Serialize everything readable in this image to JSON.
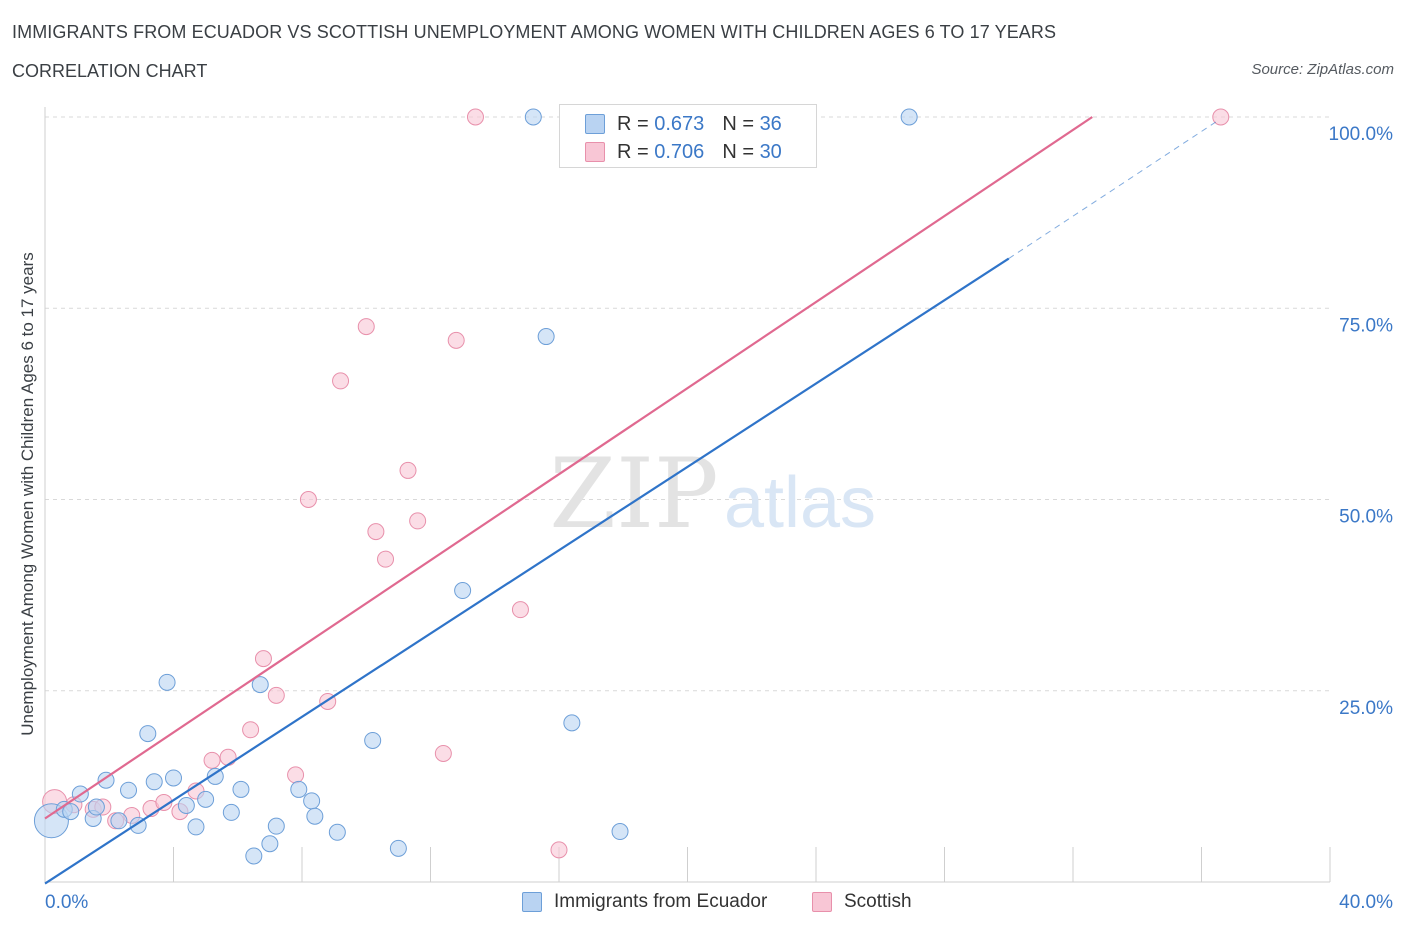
{
  "header": {
    "title": "IMMIGRANTS FROM ECUADOR VS SCOTTISH UNEMPLOYMENT AMONG WOMEN WITH CHILDREN AGES 6 TO 17 YEARS",
    "subtitle": "CORRELATION CHART",
    "source": "Source: ZipAtlas.com"
  },
  "legend": {
    "rows": [
      {
        "r_label": "R =",
        "r_value": "0.673",
        "n_label": "N =",
        "n_value": "36"
      },
      {
        "r_label": "R =",
        "r_value": "0.706",
        "n_label": "N =",
        "n_value": "30"
      }
    ]
  },
  "bottom_legend": [
    "Immigrants from Ecuador",
    "Scottish"
  ],
  "watermark": {
    "zip": "ZIP",
    "atlas": "atlas"
  },
  "colors": {
    "blue_fill": "#b9d3f2",
    "blue_stroke": "#6d9fd8",
    "blue_line": "#2f74c9",
    "pink_fill": "#f8c6d5",
    "pink_stroke": "#e890ab",
    "pink_line": "#e06990",
    "tick_label": "#3b78c7",
    "grid": "#d9d9d9"
  },
  "chart_data": {
    "type": "scatter",
    "title": "IMMIGRANTS FROM ECUADOR VS SCOTTISH UNEMPLOYMENT AMONG WOMEN WITH CHILDREN AGES 6 TO 17 YEARS",
    "xlabel": "",
    "ylabel": "Unemployment Among Women with Children Ages 6 to 17 years",
    "xlim": [
      0,
      40
    ],
    "ylim": [
      0,
      100
    ],
    "x_tick_labels": [
      "0.0%",
      "40.0%"
    ],
    "y_tick_labels": [
      "25.0%",
      "50.0%",
      "75.0%",
      "100.0%"
    ],
    "y_ticks": [
      25,
      50,
      75,
      100
    ],
    "grid": true,
    "legend_position": "top-center",
    "series": [
      {
        "name": "Immigrants from Ecuador",
        "r": 0.673,
        "n": 36,
        "trend": {
          "x": [
            0,
            30.0
          ],
          "y": [
            -0.2,
            81.5
          ],
          "extension": {
            "x": [
              30.0,
              36.5
            ],
            "y": [
              81.5,
              99.5
            ]
          }
        },
        "points": [
          {
            "x": 0.2,
            "y": 8.0,
            "big": true
          },
          {
            "x": 0.6,
            "y": 9.5
          },
          {
            "x": 0.8,
            "y": 9.2
          },
          {
            "x": 1.1,
            "y": 11.5
          },
          {
            "x": 1.5,
            "y": 8.3
          },
          {
            "x": 1.6,
            "y": 9.8
          },
          {
            "x": 1.9,
            "y": 13.3
          },
          {
            "x": 2.3,
            "y": 8.0
          },
          {
            "x": 2.6,
            "y": 12.0
          },
          {
            "x": 2.9,
            "y": 7.4
          },
          {
            "x": 3.2,
            "y": 19.4
          },
          {
            "x": 3.4,
            "y": 13.1
          },
          {
            "x": 3.8,
            "y": 26.1
          },
          {
            "x": 4.0,
            "y": 13.6
          },
          {
            "x": 4.4,
            "y": 10.0
          },
          {
            "x": 4.7,
            "y": 7.2
          },
          {
            "x": 5.0,
            "y": 10.8
          },
          {
            "x": 5.3,
            "y": 13.8
          },
          {
            "x": 5.8,
            "y": 9.1
          },
          {
            "x": 6.1,
            "y": 12.1
          },
          {
            "x": 6.5,
            "y": 3.4
          },
          {
            "x": 6.7,
            "y": 25.8
          },
          {
            "x": 7.0,
            "y": 5.0
          },
          {
            "x": 7.2,
            "y": 7.3
          },
          {
            "x": 7.9,
            "y": 12.1
          },
          {
            "x": 8.3,
            "y": 10.6
          },
          {
            "x": 8.4,
            "y": 8.6
          },
          {
            "x": 9.1,
            "y": 6.5
          },
          {
            "x": 10.2,
            "y": 18.5
          },
          {
            "x": 11.0,
            "y": 4.4
          },
          {
            "x": 13.0,
            "y": 38.1
          },
          {
            "x": 15.2,
            "y": 100.0
          },
          {
            "x": 15.6,
            "y": 71.3
          },
          {
            "x": 16.4,
            "y": 20.8
          },
          {
            "x": 17.9,
            "y": 6.6
          },
          {
            "x": 26.9,
            "y": 100.0
          }
        ]
      },
      {
        "name": "Scottish",
        "r": 0.706,
        "n": 30,
        "trend": {
          "x": [
            0,
            32.6
          ],
          "y": [
            8.3,
            100.0
          ]
        },
        "points": [
          {
            "x": 0.3,
            "y": 10.5,
            "big": true
          },
          {
            "x": 0.9,
            "y": 10.1
          },
          {
            "x": 1.5,
            "y": 9.5
          },
          {
            "x": 1.8,
            "y": 9.8
          },
          {
            "x": 2.2,
            "y": 8.0
          },
          {
            "x": 2.7,
            "y": 8.7
          },
          {
            "x": 3.3,
            "y": 9.6
          },
          {
            "x": 3.7,
            "y": 10.4
          },
          {
            "x": 4.2,
            "y": 9.2
          },
          {
            "x": 4.7,
            "y": 11.9
          },
          {
            "x": 5.2,
            "y": 15.9
          },
          {
            "x": 5.7,
            "y": 16.3
          },
          {
            "x": 6.4,
            "y": 19.9
          },
          {
            "x": 6.8,
            "y": 29.2
          },
          {
            "x": 7.2,
            "y": 24.4
          },
          {
            "x": 7.8,
            "y": 14.0
          },
          {
            "x": 8.2,
            "y": 50.0
          },
          {
            "x": 8.8,
            "y": 23.6
          },
          {
            "x": 9.2,
            "y": 65.5
          },
          {
            "x": 10.0,
            "y": 72.6
          },
          {
            "x": 10.3,
            "y": 45.8
          },
          {
            "x": 10.6,
            "y": 42.2
          },
          {
            "x": 11.3,
            "y": 53.8
          },
          {
            "x": 11.6,
            "y": 47.2
          },
          {
            "x": 12.4,
            "y": 16.8
          },
          {
            "x": 12.8,
            "y": 70.8
          },
          {
            "x": 13.4,
            "y": 100.0
          },
          {
            "x": 14.8,
            "y": 35.6
          },
          {
            "x": 16.0,
            "y": 4.2
          },
          {
            "x": 36.6,
            "y": 100.0
          }
        ]
      }
    ]
  }
}
